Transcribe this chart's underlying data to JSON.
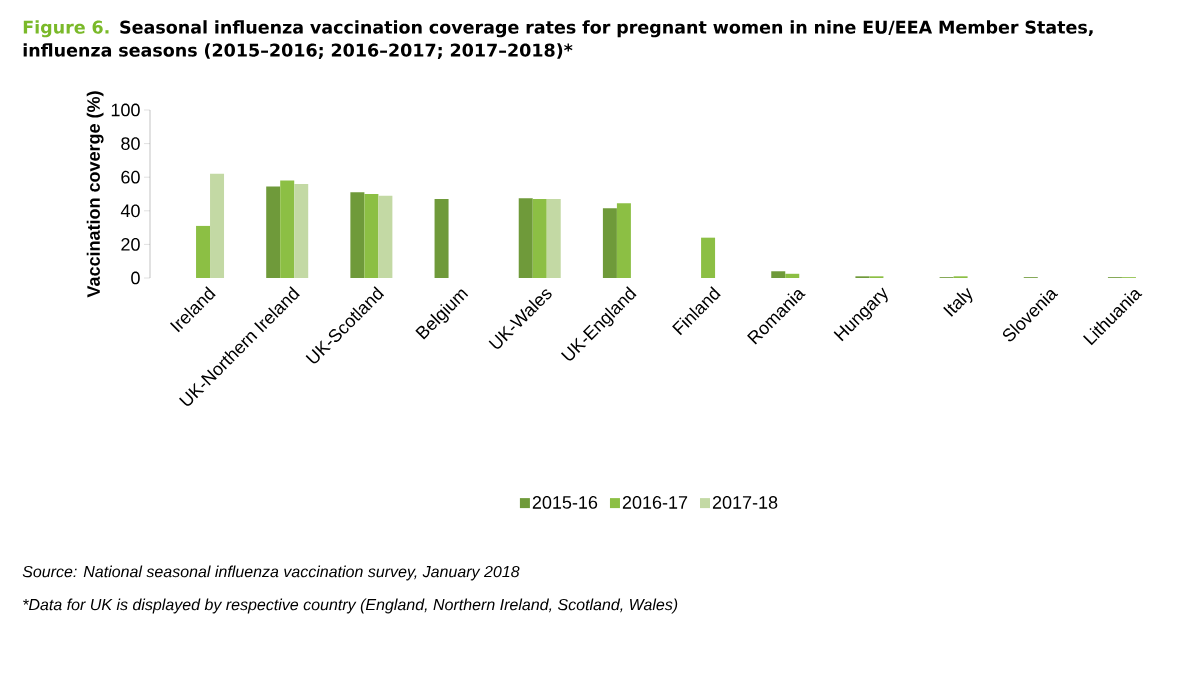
{
  "chart_data": {
    "type": "bar",
    "title": "Figure 6.",
    "subtitle": "Seasonal influenza vaccination coverage rates for pregnant women in nine EU/EEA Member States, influenza seasons (2015–2016; 2016–2017; 2017–2018)*",
    "ylabel": "Vaccination coverge (%)",
    "categories": [
      "Ireland",
      "UK-Northern Ireland",
      "UK-Scotland",
      "Belgium",
      "UK-Wales",
      "UK-England",
      "Finland",
      "Romania",
      "Hungary",
      "Italy",
      "Slovenia",
      "Lithuania"
    ],
    "series": [
      {
        "name": "2015-16",
        "color": "#6f9a3a",
        "values": [
          null,
          54.5,
          51,
          47,
          47.5,
          41.5,
          null,
          4,
          1,
          0.5,
          0.5,
          0.5
        ]
      },
      {
        "name": "2016-17",
        "color": "#8cbf44",
        "values": [
          31,
          58,
          50,
          null,
          47,
          44.5,
          24,
          2.5,
          1,
          1,
          null,
          0.5
        ]
      },
      {
        "name": "2017-18",
        "color": "#c3d9a4",
        "values": [
          62,
          56,
          49,
          null,
          47,
          null,
          null,
          null,
          null,
          null,
          null,
          null
        ]
      }
    ],
    "ylim": [
      0,
      100
    ],
    "yticks": [
      0,
      20,
      40,
      60,
      80,
      100
    ],
    "legend": "bottom",
    "grid": false,
    "annotations": [
      "Source: National seasonal influenza vaccination survey, January 2018",
      "*Data for UK is displayed by respective country (England, Northern Ireland, Scotland, Wales)"
    ]
  }
}
